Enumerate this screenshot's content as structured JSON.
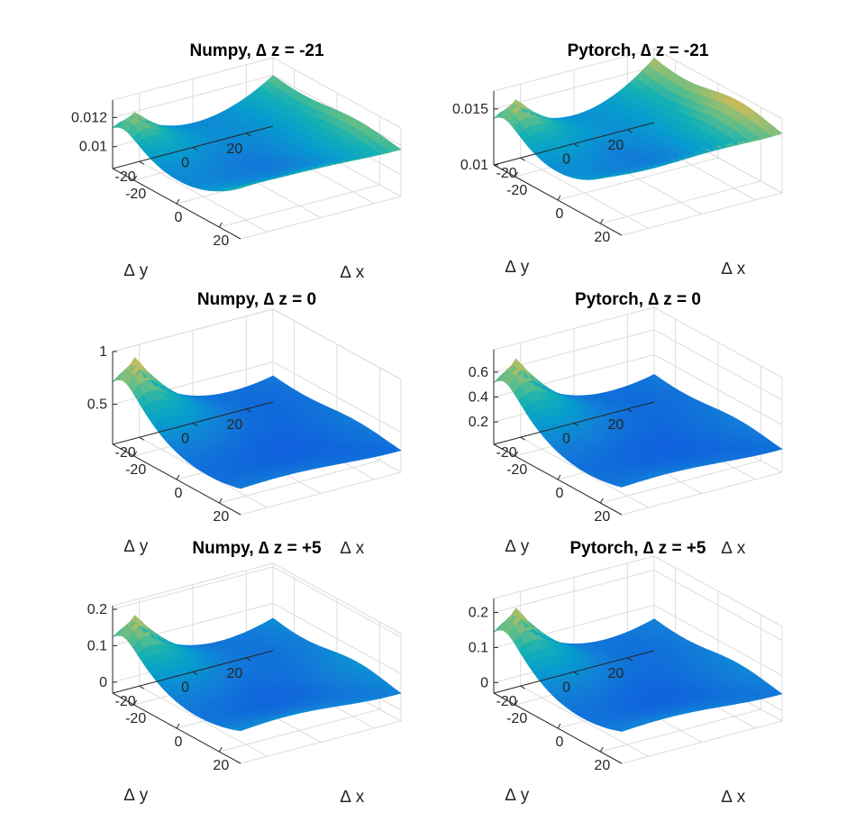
{
  "chart_data": [
    {
      "type": "surface",
      "title": "Numpy, ∆ z = -21",
      "xlabel": "∆ x",
      "ylabel": "∆ y",
      "xticks": [
        "-20",
        "0",
        "20"
      ],
      "yticks": [
        "20",
        "0",
        "-20"
      ],
      "zticks": [
        {
          "label": "0.01",
          "value": 0.01
        },
        {
          "label": "0.012",
          "value": 0.012
        }
      ],
      "zlim": [
        0.0085,
        0.0132
      ],
      "peak": 0.0125,
      "base": 0.0087,
      "back": 0.0118,
      "rim": 0.01
    },
    {
      "type": "surface",
      "title": "Pytorch, ∆ z = -21",
      "xlabel": "∆ x",
      "ylabel": "∆ y",
      "xticks": [
        "-20",
        "0",
        "20"
      ],
      "yticks": [
        "20",
        "0",
        "-20"
      ],
      "zticks": [
        {
          "label": "0.01",
          "value": 0.01
        },
        {
          "label": "0.015",
          "value": 0.015
        }
      ],
      "zlim": [
        0.01,
        0.0166
      ],
      "peak": 0.016,
      "base": 0.0102,
      "back": 0.0155,
      "rim": 0.013
    },
    {
      "type": "surface",
      "title": "Numpy, ∆ z = 0",
      "xlabel": "∆ x",
      "ylabel": "∆ y",
      "xticks": [
        "-20",
        "0",
        "20"
      ],
      "yticks": [
        "20",
        "0",
        "-20"
      ],
      "zticks": [
        {
          "label": "0.5",
          "value": 0.5
        },
        {
          "label": "1",
          "value": 1.0
        }
      ],
      "zlim": [
        0.12,
        1.0
      ],
      "peak": 0.97,
      "base": 0.15,
      "back": 0.33,
      "rim": 0.3
    },
    {
      "type": "surface",
      "title": "Pytorch, ∆ z = 0",
      "xlabel": "∆ x",
      "ylabel": "∆ y",
      "xticks": [
        "-20",
        "0",
        "20"
      ],
      "yticks": [
        "20",
        "0",
        "-20"
      ],
      "zticks": [
        {
          "label": "0.2",
          "value": 0.2
        },
        {
          "label": "0.4",
          "value": 0.4
        },
        {
          "label": "0.6",
          "value": 0.6
        }
      ],
      "zlim": [
        0.02,
        0.78
      ],
      "peak": 0.73,
      "base": 0.05,
      "back": 0.21,
      "rim": 0.19
    },
    {
      "type": "surface",
      "title": "Numpy, ∆ z = +5",
      "xlabel": "∆ x",
      "ylabel": "∆ y",
      "xticks": [
        "-20",
        "0",
        "20"
      ],
      "yticks": [
        "20",
        "0",
        "-20"
      ],
      "zticks": [
        {
          "label": "0",
          "value": 0
        },
        {
          "label": "0.1",
          "value": 0.1
        },
        {
          "label": "0.2",
          "value": 0.2
        }
      ],
      "zlim": [
        -0.03,
        0.21
      ],
      "peak": 0.19,
      "base": -0.02,
      "back": 0.05,
      "rim": 0.05
    },
    {
      "type": "surface",
      "title": "Pytorch, ∆ z = +5",
      "xlabel": "∆ x",
      "ylabel": "∆ y",
      "xticks": [
        "-20",
        "0",
        "20"
      ],
      "yticks": [
        "20",
        "0",
        "-20"
      ],
      "zticks": [
        {
          "label": "0",
          "value": 0
        },
        {
          "label": "0.1",
          "value": 0.1
        },
        {
          "label": "0.2",
          "value": 0.2
        }
      ],
      "zlim": [
        -0.03,
        0.24
      ],
      "peak": 0.22,
      "base": -0.02,
      "back": 0.05,
      "rim": 0.04
    }
  ]
}
